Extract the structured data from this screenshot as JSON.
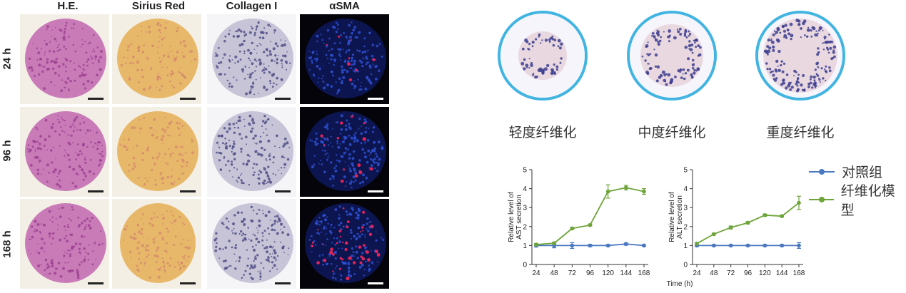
{
  "histology": {
    "columns": [
      "H.E.",
      "Sirius Red",
      "Collagen I",
      "αSMA"
    ],
    "rows": [
      "24 h",
      "96 h",
      "168 h"
    ]
  },
  "fibrosis_levels": {
    "labels": [
      "轻度纤维化",
      "中度纤维化",
      "重度纤维化"
    ]
  },
  "legend": {
    "items": [
      {
        "label": "对照组",
        "color": "#4a78c0"
      },
      {
        "label": "纤维化模型",
        "color": "#6ea43a"
      }
    ]
  },
  "chart_data": [
    {
      "type": "line",
      "title": "",
      "xlabel": "",
      "ylabel": "Relative level of AST secretion",
      "x": [
        24,
        48,
        72,
        96,
        120,
        144,
        168
      ],
      "xlim": [
        24,
        168
      ],
      "ylim": [
        0,
        5
      ],
      "yticks": [
        0,
        1,
        2,
        3,
        4,
        5
      ],
      "series": [
        {
          "name": "对照组",
          "color": "#4a78c0",
          "values": [
            1.0,
            1.0,
            1.0,
            1.0,
            1.0,
            1.08,
            1.0
          ],
          "errors": [
            0.08,
            0.12,
            0.15,
            0.06,
            0.05,
            0.06,
            0.04
          ]
        },
        {
          "name": "纤维化模型",
          "color": "#6ea43a",
          "values": [
            1.05,
            1.12,
            1.9,
            2.08,
            3.85,
            4.05,
            3.85
          ],
          "errors": [
            0.05,
            0.05,
            0.05,
            0.05,
            0.35,
            0.12,
            0.15
          ]
        }
      ]
    },
    {
      "type": "line",
      "title": "",
      "xlabel": "Time (h)",
      "ylabel": "Relative level of ALT secretion",
      "x": [
        24,
        48,
        72,
        96,
        120,
        144,
        168
      ],
      "xlim": [
        24,
        168
      ],
      "ylim": [
        0,
        5
      ],
      "yticks": [
        0,
        1,
        2,
        3,
        4,
        5
      ],
      "series": [
        {
          "name": "对照组",
          "color": "#4a78c0",
          "values": [
            1.0,
            1.0,
            1.0,
            1.0,
            1.0,
            1.0,
            1.0
          ],
          "errors": [
            0.05,
            0.04,
            0.04,
            0.04,
            0.04,
            0.05,
            0.15
          ]
        },
        {
          "name": "纤维化模型",
          "color": "#6ea43a",
          "values": [
            1.1,
            1.6,
            1.95,
            2.2,
            2.6,
            2.55,
            3.25
          ],
          "errors": [
            0.05,
            0.05,
            0.08,
            0.06,
            0.06,
            0.05,
            0.35
          ]
        }
      ]
    }
  ]
}
